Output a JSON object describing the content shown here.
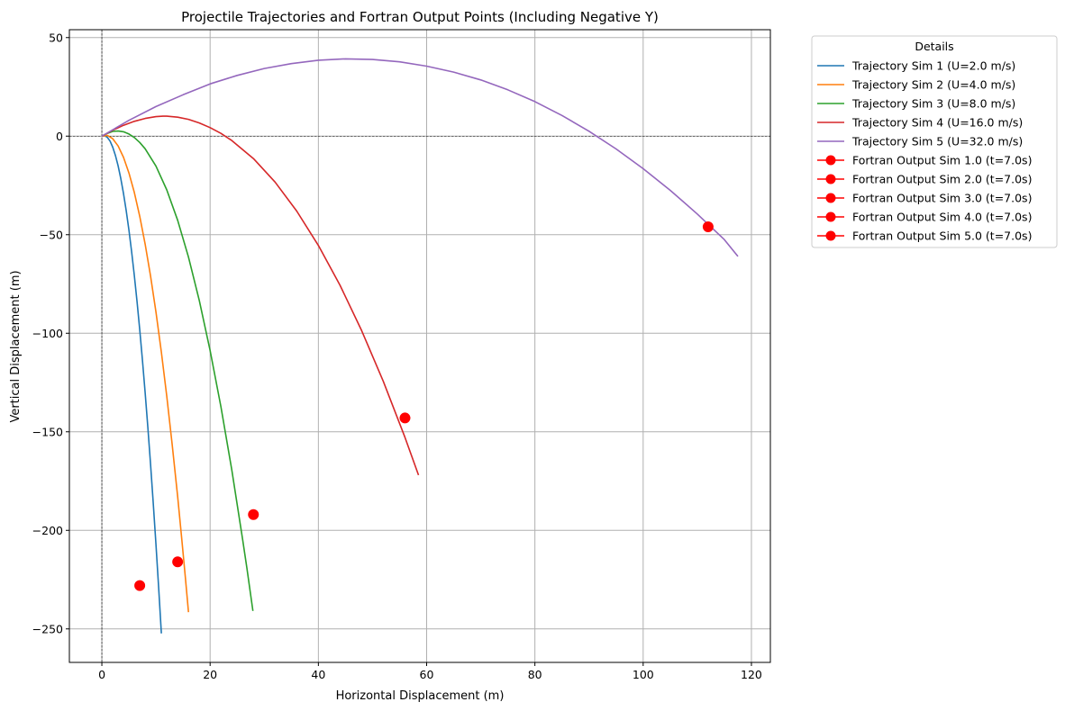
{
  "chart_data": {
    "type": "line",
    "title": "Projectile Trajectories and Fortran Output Points (Including Negative Y)",
    "xlabel": "Horizontal Displacement (m)",
    "ylabel": "Vertical Displacement (m)",
    "xlim": [
      -6,
      123.5
    ],
    "ylim": [
      -267,
      54
    ],
    "x_ticks": [
      0,
      20,
      40,
      60,
      80,
      100,
      120
    ],
    "y_ticks": [
      50,
      0,
      -50,
      -100,
      -150,
      -200,
      -250
    ],
    "grid": true,
    "legend": {
      "title": "Details",
      "placement": "outside-top-right"
    },
    "series": [
      {
        "name": "Trajectory Sim 1 (U=2.0 m/s)",
        "color": "#1f77b4",
        "points": [
          [
            0,
            0
          ],
          [
            0.5,
            0.2
          ],
          [
            1,
            -0.6
          ],
          [
            1.5,
            -2.5
          ],
          [
            2,
            -5.6
          ],
          [
            2.5,
            -9.8
          ],
          [
            3,
            -15.1
          ],
          [
            3.5,
            -21.6
          ],
          [
            4,
            -29.2
          ],
          [
            4.5,
            -37.9
          ],
          [
            5,
            -47.7
          ],
          [
            5.5,
            -58.7
          ],
          [
            6,
            -70.8
          ],
          [
            6.5,
            -84
          ],
          [
            7,
            -98.3
          ],
          [
            7.5,
            -113.7
          ],
          [
            8,
            -130.2
          ],
          [
            8.5,
            -147.8
          ],
          [
            9,
            -166.5
          ],
          [
            9.5,
            -186.3
          ],
          [
            10,
            -207.2
          ],
          [
            10.5,
            -229.2
          ],
          [
            11,
            -252.3
          ]
        ]
      },
      {
        "name": "Trajectory Sim 2 (U=4.0 m/s)",
        "color": "#ff7f0e",
        "points": [
          [
            0,
            0
          ],
          [
            1,
            0.4
          ],
          [
            2,
            -1.3
          ],
          [
            3,
            -5
          ],
          [
            4,
            -10.8
          ],
          [
            5,
            -18.7
          ],
          [
            6,
            -28.6
          ],
          [
            7,
            -40.7
          ],
          [
            8,
            -54.8
          ],
          [
            9,
            -71
          ],
          [
            10,
            -89.3
          ],
          [
            11,
            -109.6
          ],
          [
            12,
            -132
          ],
          [
            13,
            -156.5
          ],
          [
            14,
            -183
          ],
          [
            14.7,
            -202.8
          ],
          [
            15.4,
            -223.3
          ],
          [
            16,
            -241.5
          ]
        ]
      },
      {
        "name": "Trajectory Sim 3 (U=8.0 m/s)",
        "color": "#2ca02c",
        "points": [
          [
            0,
            0
          ],
          [
            1,
            1.4
          ],
          [
            2,
            2.4
          ],
          [
            3,
            2.6
          ],
          [
            4,
            2.2
          ],
          [
            5,
            1.1
          ],
          [
            6,
            -0.7
          ],
          [
            7,
            -3.2
          ],
          [
            8,
            -6.4
          ],
          [
            10,
            -15.2
          ],
          [
            12,
            -27.3
          ],
          [
            14,
            -42.7
          ],
          [
            16,
            -61.4
          ],
          [
            18,
            -83.4
          ],
          [
            20,
            -108.8
          ],
          [
            22,
            -137.3
          ],
          [
            24,
            -169.2
          ],
          [
            26,
            -204.4
          ],
          [
            26.8,
            -219.4
          ],
          [
            27.9,
            -240.9
          ]
        ]
      },
      {
        "name": "Trajectory Sim 4 (U=16.0 m/s)",
        "color": "#d62728",
        "points": [
          [
            0,
            0
          ],
          [
            2,
            3
          ],
          [
            4,
            5.5
          ],
          [
            6,
            7.5
          ],
          [
            8,
            9
          ],
          [
            10,
            9.9
          ],
          [
            11.3,
            10.1
          ],
          [
            12,
            10.1
          ],
          [
            14,
            9.6
          ],
          [
            16,
            8.5
          ],
          [
            18,
            6.7
          ],
          [
            20,
            4.3
          ],
          [
            22,
            1.4
          ],
          [
            24,
            -2.2
          ],
          [
            28,
            -11.4
          ],
          [
            32,
            -23.3
          ],
          [
            36,
            -38
          ],
          [
            40,
            -55.5
          ],
          [
            44,
            -75.7
          ],
          [
            48,
            -98.7
          ],
          [
            52,
            -124.4
          ],
          [
            56,
            -152.9
          ],
          [
            58.5,
            -172
          ]
        ]
      },
      {
        "name": "Trajectory Sim 5 (U=32.0 m/s)",
        "color": "#9467bd",
        "points": [
          [
            0,
            0
          ],
          [
            5,
            8
          ],
          [
            10,
            15
          ],
          [
            15,
            21
          ],
          [
            20,
            26.5
          ],
          [
            25,
            30.8
          ],
          [
            30,
            34.3
          ],
          [
            35,
            36.8
          ],
          [
            40,
            38.5
          ],
          [
            45,
            39.2
          ],
          [
            50,
            38.9
          ],
          [
            55,
            37.7
          ],
          [
            60,
            35.5
          ],
          [
            65,
            32.5
          ],
          [
            70,
            28.5
          ],
          [
            75,
            23.5
          ],
          [
            80,
            17.5
          ],
          [
            85,
            10.5
          ],
          [
            90,
            2.5
          ],
          [
            95,
            -6.5
          ],
          [
            100,
            -16.5
          ],
          [
            105,
            -27.5
          ],
          [
            110,
            -39.5
          ],
          [
            115,
            -52.5
          ],
          [
            117.5,
            -61
          ]
        ]
      }
    ],
    "markers": [
      {
        "name": "Fortran Output Sim 1.0 (t=7.0s)",
        "color": "#ff0000",
        "x": 7,
        "y": -228
      },
      {
        "name": "Fortran Output Sim 2.0 (t=7.0s)",
        "color": "#ff0000",
        "x": 14,
        "y": -216
      },
      {
        "name": "Fortran Output Sim 3.0 (t=7.0s)",
        "color": "#ff0000",
        "x": 28,
        "y": -192
      },
      {
        "name": "Fortran Output Sim 4.0 (t=7.0s)",
        "color": "#ff0000",
        "x": 56,
        "y": -143
      },
      {
        "name": "Fortran Output Sim 5.0 (t=7.0s)",
        "color": "#ff0000",
        "x": 112,
        "y": -46
      }
    ]
  }
}
